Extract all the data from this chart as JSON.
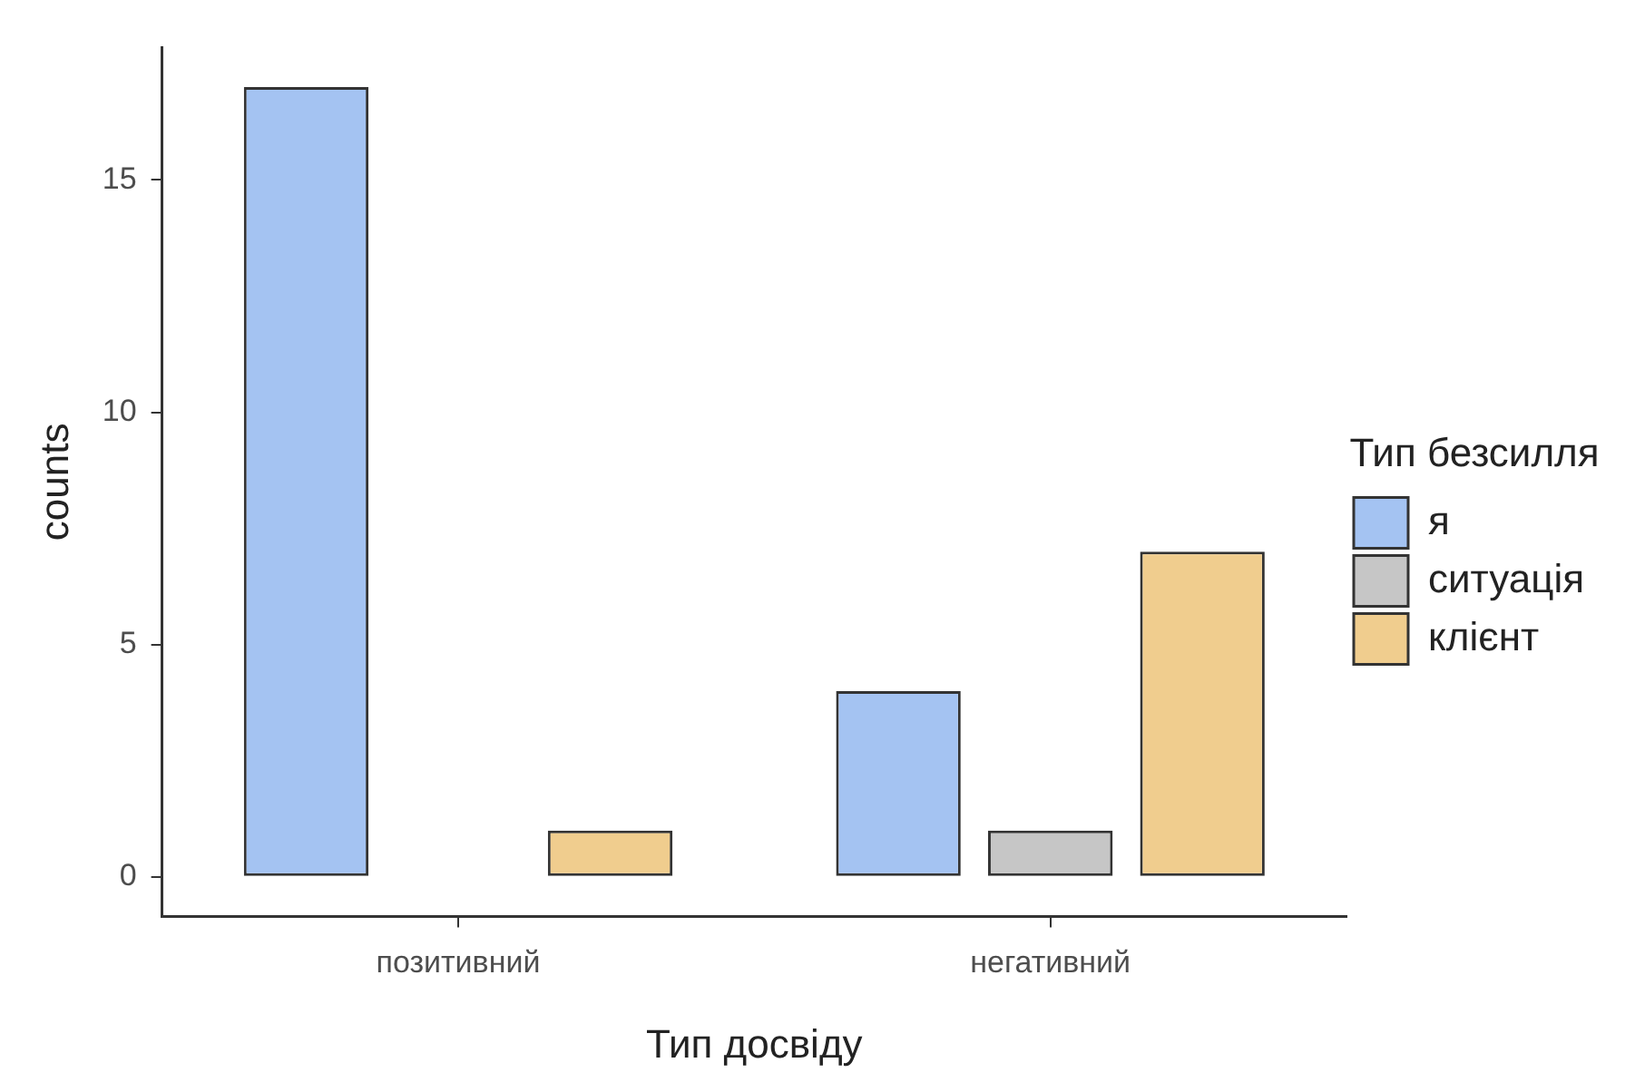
{
  "chart_data": {
    "type": "bar",
    "xlabel": "Тип досвіду",
    "ylabel": "counts",
    "legend_title": "Тип безсилля",
    "categories": [
      "позитивний",
      "негативний"
    ],
    "series": [
      {
        "name": "я",
        "color": "#a4c3f2",
        "values": [
          17,
          4
        ]
      },
      {
        "name": "ситуація",
        "color": "#c6c6c6",
        "values": [
          0,
          1
        ]
      },
      {
        "name": "клієнт",
        "color": "#f0cd8e",
        "values": [
          1,
          7
        ]
      }
    ],
    "ylim": [
      -0.85,
      17.85
    ],
    "yticks": [
      0,
      5,
      10,
      15
    ],
    "grid": false,
    "legend": "right"
  }
}
